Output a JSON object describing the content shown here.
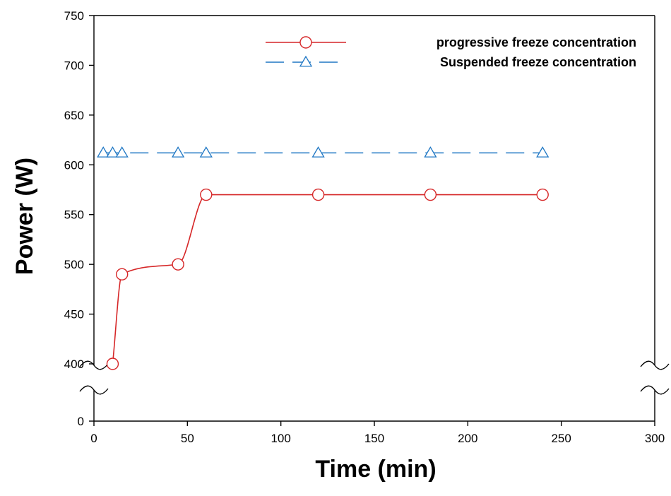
{
  "chart_data": {
    "type": "line",
    "title": "",
    "xlabel": "Time (min)",
    "ylabel": "Power (W)",
    "xlim": [
      0,
      300
    ],
    "y_axis": {
      "broken": true,
      "lower_segment": [
        0,
        0
      ],
      "upper_segment": [
        400,
        750
      ]
    },
    "x_ticks": [
      "0",
      "50",
      "100",
      "150",
      "200",
      "250",
      "300"
    ],
    "y_ticks": [
      "0",
      "400",
      "450",
      "500",
      "550",
      "600",
      "650",
      "700",
      "750"
    ],
    "grid": false,
    "legend_position": "top-right",
    "series": [
      {
        "name": "progressive freeze concentration",
        "color": "#d62728",
        "line": "solid-smooth",
        "marker": "circle",
        "x": [
          10,
          15,
          45,
          60,
          120,
          180,
          240
        ],
        "y": [
          400,
          490,
          500,
          570,
          570,
          570,
          570
        ]
      },
      {
        "name": "Suspended freeze concentration",
        "color": "#1f77c4",
        "line": "dashed",
        "marker": "triangle",
        "x": [
          5,
          10,
          15,
          45,
          60,
          120,
          180,
          240
        ],
        "y": [
          612,
          612,
          612,
          612,
          612,
          612,
          612,
          612
        ]
      }
    ]
  }
}
